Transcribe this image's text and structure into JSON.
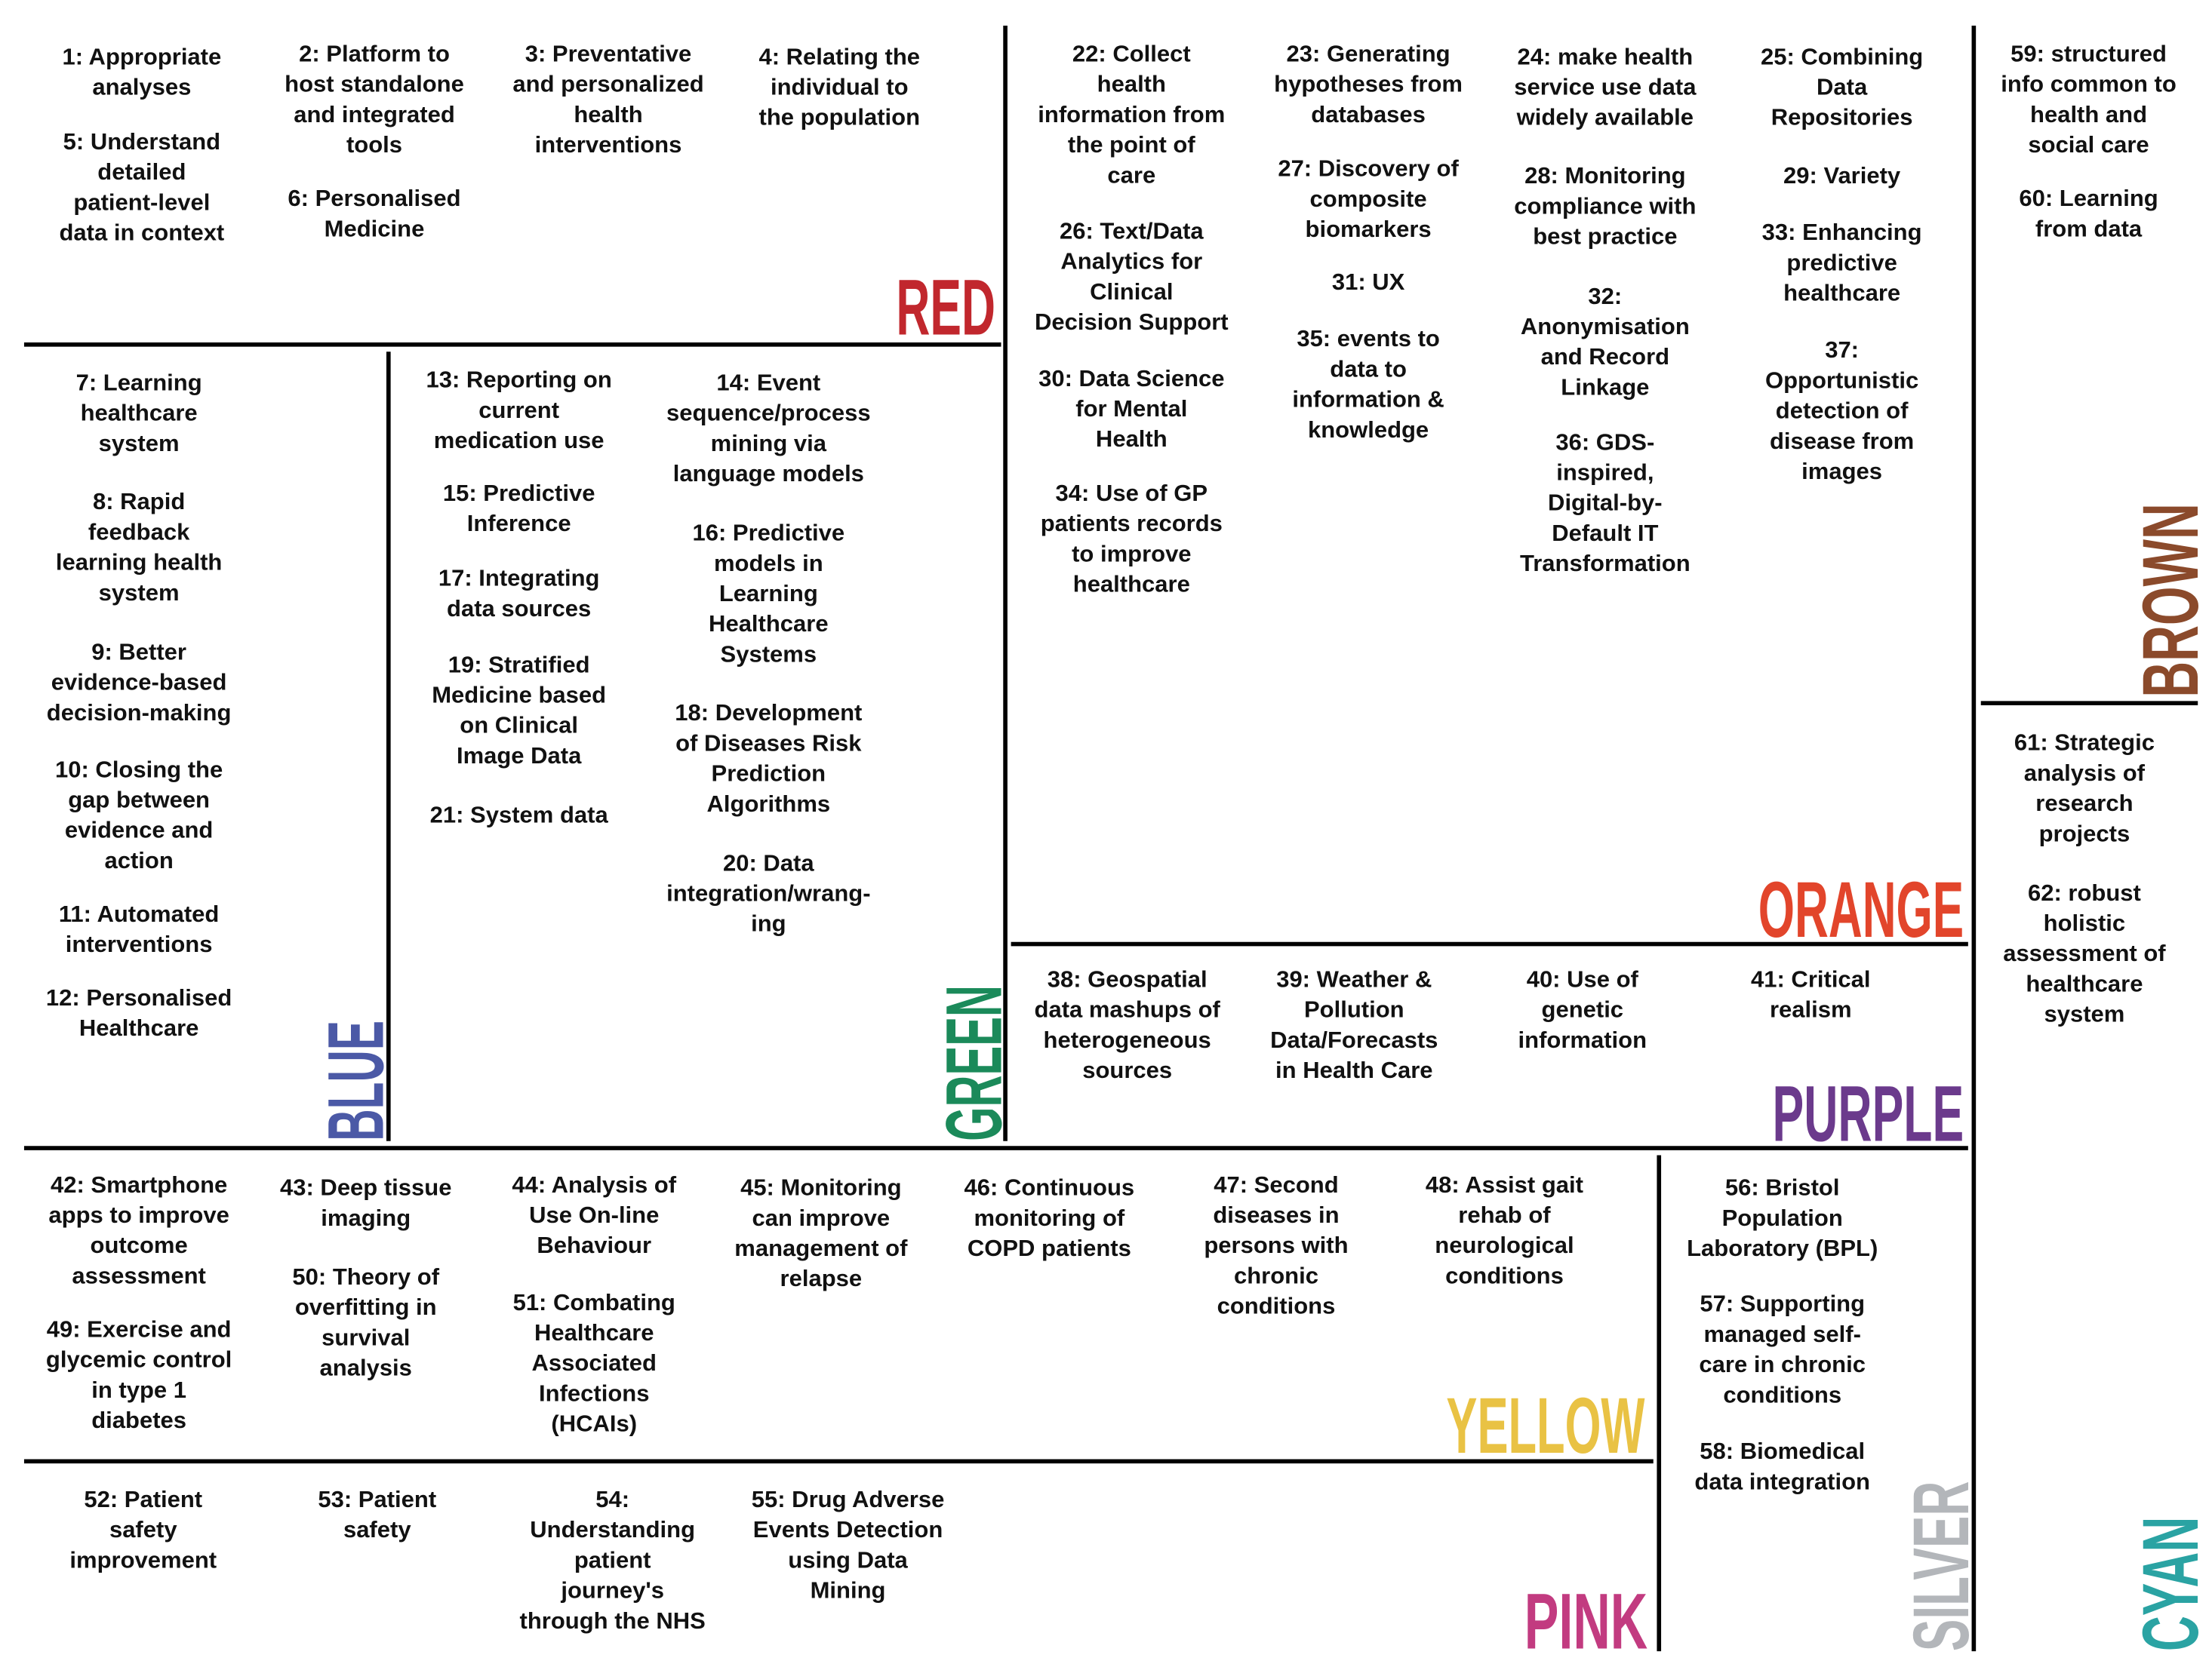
{
  "groups": [
    {
      "label": "RED",
      "color": "#c1272d",
      "items": [
        [
          "1: Appropriate",
          "analyses"
        ],
        [
          "2: Platform to",
          "host standalone",
          "and integrated",
          "tools"
        ],
        [
          "3: Preventative",
          "and personalized",
          "health",
          "interventions"
        ],
        [
          "4: Relating the",
          "individual to",
          "the population"
        ],
        [
          "5: Understand",
          "detailed",
          "patient-level",
          "data in context"
        ],
        [
          "6: Personalised",
          "Medicine"
        ]
      ]
    },
    {
      "label": "BLUE",
      "color": "#4b59a6",
      "items": [
        [
          "7: Learning",
          "healthcare",
          "system"
        ],
        [
          "8: Rapid",
          "feedback",
          "learning health",
          "system"
        ],
        [
          "9: Better",
          "evidence-based",
          "decision-making"
        ],
        [
          "10: Closing the",
          "gap between",
          "evidence and",
          "action"
        ],
        [
          "11: Automated",
          "interventions"
        ],
        [
          "12: Personalised",
          "Healthcare"
        ]
      ]
    },
    {
      "label": "GREEN",
      "color": "#1b8a5a",
      "items": [
        [
          "13: Reporting on",
          "current",
          "medication use"
        ],
        [
          "14: Event",
          "sequence/process",
          "mining via",
          "language models"
        ],
        [
          "15: Predictive",
          "Inference"
        ],
        [
          "16: Predictive",
          "models in",
          "Learning",
          "Healthcare",
          "Systems"
        ],
        [
          "17: Integrating",
          "data sources"
        ],
        [
          "18: Development",
          "of Diseases Risk",
          "Prediction",
          "Algorithms"
        ],
        [
          "19: Stratified",
          "Medicine based",
          "on Clinical",
          "Image Data"
        ],
        [
          "20: Data",
          "integration/wrang-",
          "ing"
        ],
        [
          "21: System data"
        ]
      ]
    },
    {
      "label": "ORANGE",
      "color": "#e2452b",
      "items": [
        [
          "22: Collect",
          "health",
          "information from",
          "the point of",
          "care"
        ],
        [
          "23: Generating",
          "hypotheses from",
          "databases"
        ],
        [
          "24: make health",
          "service use data",
          "widely available"
        ],
        [
          "25: Combining",
          "Data",
          "Repositories"
        ],
        [
          "26: Text/Data",
          "Analytics for",
          "Clinical",
          "Decision Support"
        ],
        [
          "27: Discovery of",
          "composite",
          "biomarkers"
        ],
        [
          "28: Monitoring",
          "compliance with",
          "best practice"
        ],
        [
          "29: Variety"
        ],
        [
          "30: Data Science",
          "for Mental",
          "Health"
        ],
        [
          "31: UX"
        ],
        [
          "32:",
          "Anonymisation",
          "and Record",
          "Linkage"
        ],
        [
          "33: Enhancing",
          "predictive",
          "healthcare"
        ],
        [
          "34: Use of GP",
          "patients records",
          "to improve",
          "healthcare"
        ],
        [
          "35: events to",
          "data to",
          "information &",
          "knowledge"
        ],
        [
          "36: GDS-",
          "inspired,",
          "Digital-by-",
          "Default IT",
          "Transformation"
        ],
        [
          "37:",
          "Opportunistic",
          "detection of",
          "disease from",
          "images"
        ]
      ]
    },
    {
      "label": "PURPLE",
      "color": "#6b3a8c",
      "items": [
        [
          "38: Geospatial",
          "data mashups of",
          "heterogeneous",
          "sources"
        ],
        [
          "39: Weather &",
          "Pollution",
          "Data/Forecasts",
          "in Health Care"
        ],
        [
          "40: Use of",
          "genetic",
          "information"
        ],
        [
          "41: Critical",
          "realism"
        ]
      ]
    },
    {
      "label": "YELLOW",
      "color": "#e9c244",
      "items": [
        [
          "42: Smartphone",
          "apps to improve",
          "outcome",
          "assessment"
        ],
        [
          "43: Deep tissue",
          "imaging"
        ],
        [
          "44: Analysis of",
          "Use On-line",
          "Behaviour"
        ],
        [
          "45: Monitoring",
          "can improve",
          "management of",
          "relapse"
        ],
        [
          "46: Continuous",
          "monitoring of",
          "COPD patients"
        ],
        [
          "47: Second",
          "diseases in",
          "persons with",
          "chronic",
          "conditions"
        ],
        [
          "48: Assist gait",
          "rehab of",
          "neurological",
          "conditions"
        ],
        [
          "49: Exercise and",
          "glycemic control",
          "in type 1",
          "diabetes"
        ],
        [
          "50: Theory of",
          "overfitting in",
          "survival",
          "analysis"
        ],
        [
          "51: Combating",
          "Healthcare",
          "Associated",
          "Infections",
          "(HCAIs)"
        ]
      ]
    },
    {
      "label": "PINK",
      "color": "#c23b80",
      "items": [
        [
          "52: Patient",
          "safety",
          "improvement"
        ],
        [
          "53: Patient",
          "safety"
        ],
        [
          "54:",
          "Understanding",
          "patient",
          "journey's",
          "through the NHS"
        ],
        [
          "55: Drug Adverse",
          "Events Detection",
          "using Data",
          "Mining"
        ]
      ]
    },
    {
      "label": "SILVER",
      "color": "#b3b6ba",
      "items": [
        [
          "56: Bristol",
          "Population",
          "Laboratory (BPL)"
        ],
        [
          "57: Supporting",
          "managed self-",
          "care in chronic",
          "conditions"
        ],
        [
          "58: Biomedical",
          "data integration"
        ]
      ]
    },
    {
      "label": "BROWN",
      "color": "#8b4a2b",
      "items": [
        [
          "59: structured",
          "info common to",
          "health and",
          "social care"
        ],
        [
          "60: Learning",
          "from data"
        ]
      ]
    },
    {
      "label": "CYAN",
      "color": "#2aa3a3",
      "items": [
        [
          "61: Strategic",
          "analysis of",
          "research",
          "projects"
        ],
        [
          "62: robust",
          "holistic",
          "assessment of",
          "healthcare",
          "system"
        ]
      ]
    }
  ]
}
